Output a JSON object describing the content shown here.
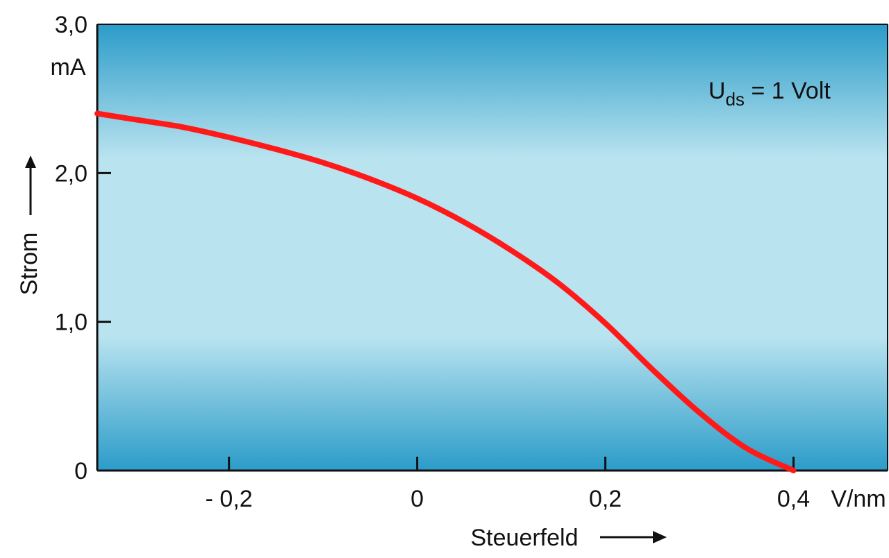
{
  "chart_data": {
    "type": "line",
    "title": "",
    "xlabel": "Steuerfeld",
    "x_unit": "V/nm",
    "ylabel": "Strom",
    "y_unit": "mA",
    "xlim": [
      -0.34,
      0.5
    ],
    "ylim": [
      0,
      3.0
    ],
    "x_ticks": [
      -0.2,
      0,
      0.2,
      0.4
    ],
    "x_tick_labels": [
      "- 0,2",
      "0",
      "0,2",
      "0,4"
    ],
    "y_ticks": [
      0,
      1.0,
      2.0,
      3.0
    ],
    "y_tick_labels": [
      "0",
      "1,0",
      "2,0",
      "3,0"
    ],
    "grid": false,
    "legend": null,
    "annotation": {
      "prefix": "U",
      "subscript": "ds",
      "suffix": " = 1 Volt"
    },
    "colors": {
      "curve": "#ff1a1a",
      "background_edge": "#2b9cc9",
      "background_center": "#b9e3ef",
      "axis": "#111111"
    },
    "series": [
      {
        "x": [
          -0.34,
          -0.3,
          -0.25,
          -0.2,
          -0.15,
          -0.1,
          -0.05,
          0.0,
          0.05,
          0.1,
          0.15,
          0.2,
          0.25,
          0.3,
          0.35,
          0.4
        ],
        "y": [
          2.4,
          2.36,
          2.31,
          2.24,
          2.16,
          2.07,
          1.96,
          1.83,
          1.67,
          1.48,
          1.26,
          0.99,
          0.68,
          0.39,
          0.15,
          0.0
        ]
      }
    ]
  }
}
